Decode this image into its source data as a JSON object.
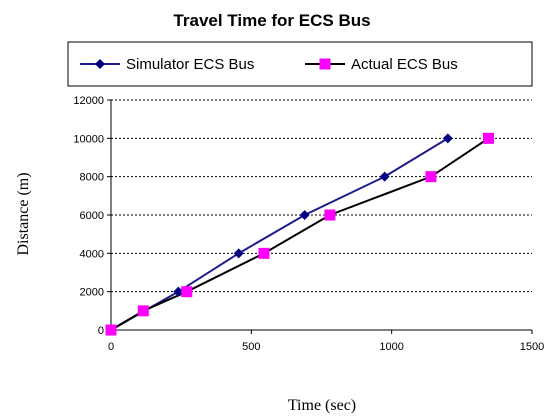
{
  "chart_data": {
    "type": "line",
    "title": "Travel Time for ECS Bus",
    "xlabel": "Time (sec)",
    "ylabel": "Distance (m)",
    "xlim": [
      0,
      1500
    ],
    "ylim": [
      0,
      12000
    ],
    "x_ticks": [
      0,
      500,
      1000,
      1500
    ],
    "y_ticks": [
      0,
      2000,
      4000,
      6000,
      8000,
      10000,
      12000
    ],
    "grid": "horizontal dashed",
    "legend_placement": "top",
    "series": [
      {
        "name": "Simulator ECS Bus",
        "color": "#1c1c8c",
        "marker": "diamond",
        "marker_color": "#000080",
        "points": [
          {
            "x": 0,
            "y": 0
          },
          {
            "x": 240,
            "y": 2000
          },
          {
            "x": 455,
            "y": 4000
          },
          {
            "x": 690,
            "y": 6000
          },
          {
            "x": 975,
            "y": 8000
          },
          {
            "x": 1200,
            "y": 10000
          }
        ]
      },
      {
        "name": "Actual ECS Bus",
        "color": "#000000",
        "marker": "square",
        "marker_color": "#ff00ff",
        "points": [
          {
            "x": 0,
            "y": 0
          },
          {
            "x": 115,
            "y": 1000
          },
          {
            "x": 270,
            "y": 2000
          },
          {
            "x": 545,
            "y": 4000
          },
          {
            "x": 780,
            "y": 6000
          },
          {
            "x": 1140,
            "y": 8000
          },
          {
            "x": 1345,
            "y": 10000
          }
        ]
      }
    ]
  }
}
